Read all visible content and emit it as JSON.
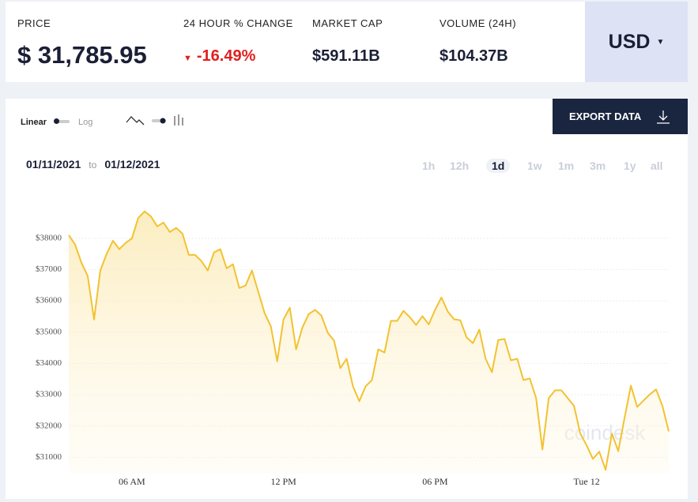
{
  "stats": [
    {
      "label": "PRICE",
      "value": "$ 31,785.95"
    },
    {
      "label": "24 HOUR % CHANGE",
      "value": "-16.49%"
    },
    {
      "label": "MARKET CAP",
      "value": "$591.11B"
    },
    {
      "label": "VOLUME (24H)",
      "value": "$104.37B"
    }
  ],
  "currency": "USD",
  "controls": {
    "linear": "Linear",
    "log": "Log",
    "export": "EXPORT DATA"
  },
  "date_range": {
    "from": "01/11/2021",
    "to_word": "to",
    "to": "01/12/2021"
  },
  "ranges": [
    "1h",
    "12h",
    "1d",
    "1w",
    "1m",
    "3m",
    "1y",
    "all"
  ],
  "active_range": "1d",
  "watermark": "coindesk",
  "chart_data": {
    "type": "line",
    "color": "#f2c230",
    "grid": true,
    "x": [
      3.5,
      3.75,
      4,
      4.25,
      4.5,
      4.75,
      5,
      5.25,
      5.5,
      5.75,
      6,
      6.25,
      6.5,
      6.75,
      7,
      7.25,
      7.5,
      7.75,
      8,
      8.25,
      8.5,
      8.75,
      9,
      9.25,
      9.5,
      9.75,
      10,
      10.25,
      10.5,
      10.75,
      11,
      11.25,
      11.5,
      11.75,
      12,
      12.25,
      12.5,
      12.75,
      13,
      13.25,
      13.5,
      13.75,
      14,
      14.25,
      14.5,
      14.75,
      15,
      15.25,
      15.5,
      15.75,
      16,
      16.25,
      16.5,
      16.75,
      17,
      17.25,
      17.5,
      17.75,
      18,
      18.25,
      18.5,
      18.75,
      19,
      19.25,
      19.5,
      19.75,
      20,
      20.25,
      20.5,
      20.75,
      21,
      21.25,
      21.5,
      21.75,
      22,
      22.25,
      22.5,
      22.75,
      23,
      23.25,
      23.5,
      23.75,
      24,
      24.25,
      24.5,
      24.75,
      25,
      25.25,
      25.5,
      25.75,
      26,
      26.25,
      26.5,
      26.75,
      27,
      27.25
    ],
    "values": [
      38100,
      37800,
      37220,
      36790,
      35400,
      36970,
      37500,
      37920,
      37650,
      37850,
      38000,
      38650,
      38860,
      38700,
      38380,
      38500,
      38200,
      38330,
      38150,
      37470,
      37470,
      37270,
      36970,
      37550,
      37650,
      37040,
      37170,
      36410,
      36490,
      36970,
      36290,
      35610,
      35180,
      34070,
      35400,
      35780,
      34450,
      35150,
      35580,
      35710,
      35530,
      34980,
      34730,
      33850,
      34150,
      33270,
      32790,
      33270,
      33470,
      34450,
      34350,
      35360,
      35360,
      35680,
      35480,
      35230,
      35510,
      35250,
      35710,
      36110,
      35660,
      35410,
      35380,
      34830,
      34650,
      35080,
      34150,
      33720,
      34750,
      34780,
      34100,
      34150,
      33470,
      33520,
      32890,
      31250,
      32890,
      33140,
      33140,
      32890,
      32640,
      31760,
      31380,
      30950,
      31180,
      30600,
      31760,
      31200,
      32260,
      33290,
      32610,
      32810,
      33010,
      33170,
      32640,
      31830
    ],
    "xlim": [
      3.5,
      27.25
    ],
    "xticks": [
      {
        "value": 6,
        "label": "06 AM"
      },
      {
        "value": 12,
        "label": "12 PM"
      },
      {
        "value": 18,
        "label": "06 PM"
      },
      {
        "value": 24,
        "label": "Tue 12"
      }
    ],
    "ylim": [
      30480,
      39560
    ],
    "yticks": [
      {
        "value": 31000,
        "label": "$31000"
      },
      {
        "value": 32000,
        "label": "$32000"
      },
      {
        "value": 33000,
        "label": "$33000"
      },
      {
        "value": 34000,
        "label": "$34000"
      },
      {
        "value": 35000,
        "label": "$35000"
      },
      {
        "value": 36000,
        "label": "$36000"
      },
      {
        "value": 37000,
        "label": "$37000"
      },
      {
        "value": 38000,
        "label": "$38000"
      }
    ]
  }
}
